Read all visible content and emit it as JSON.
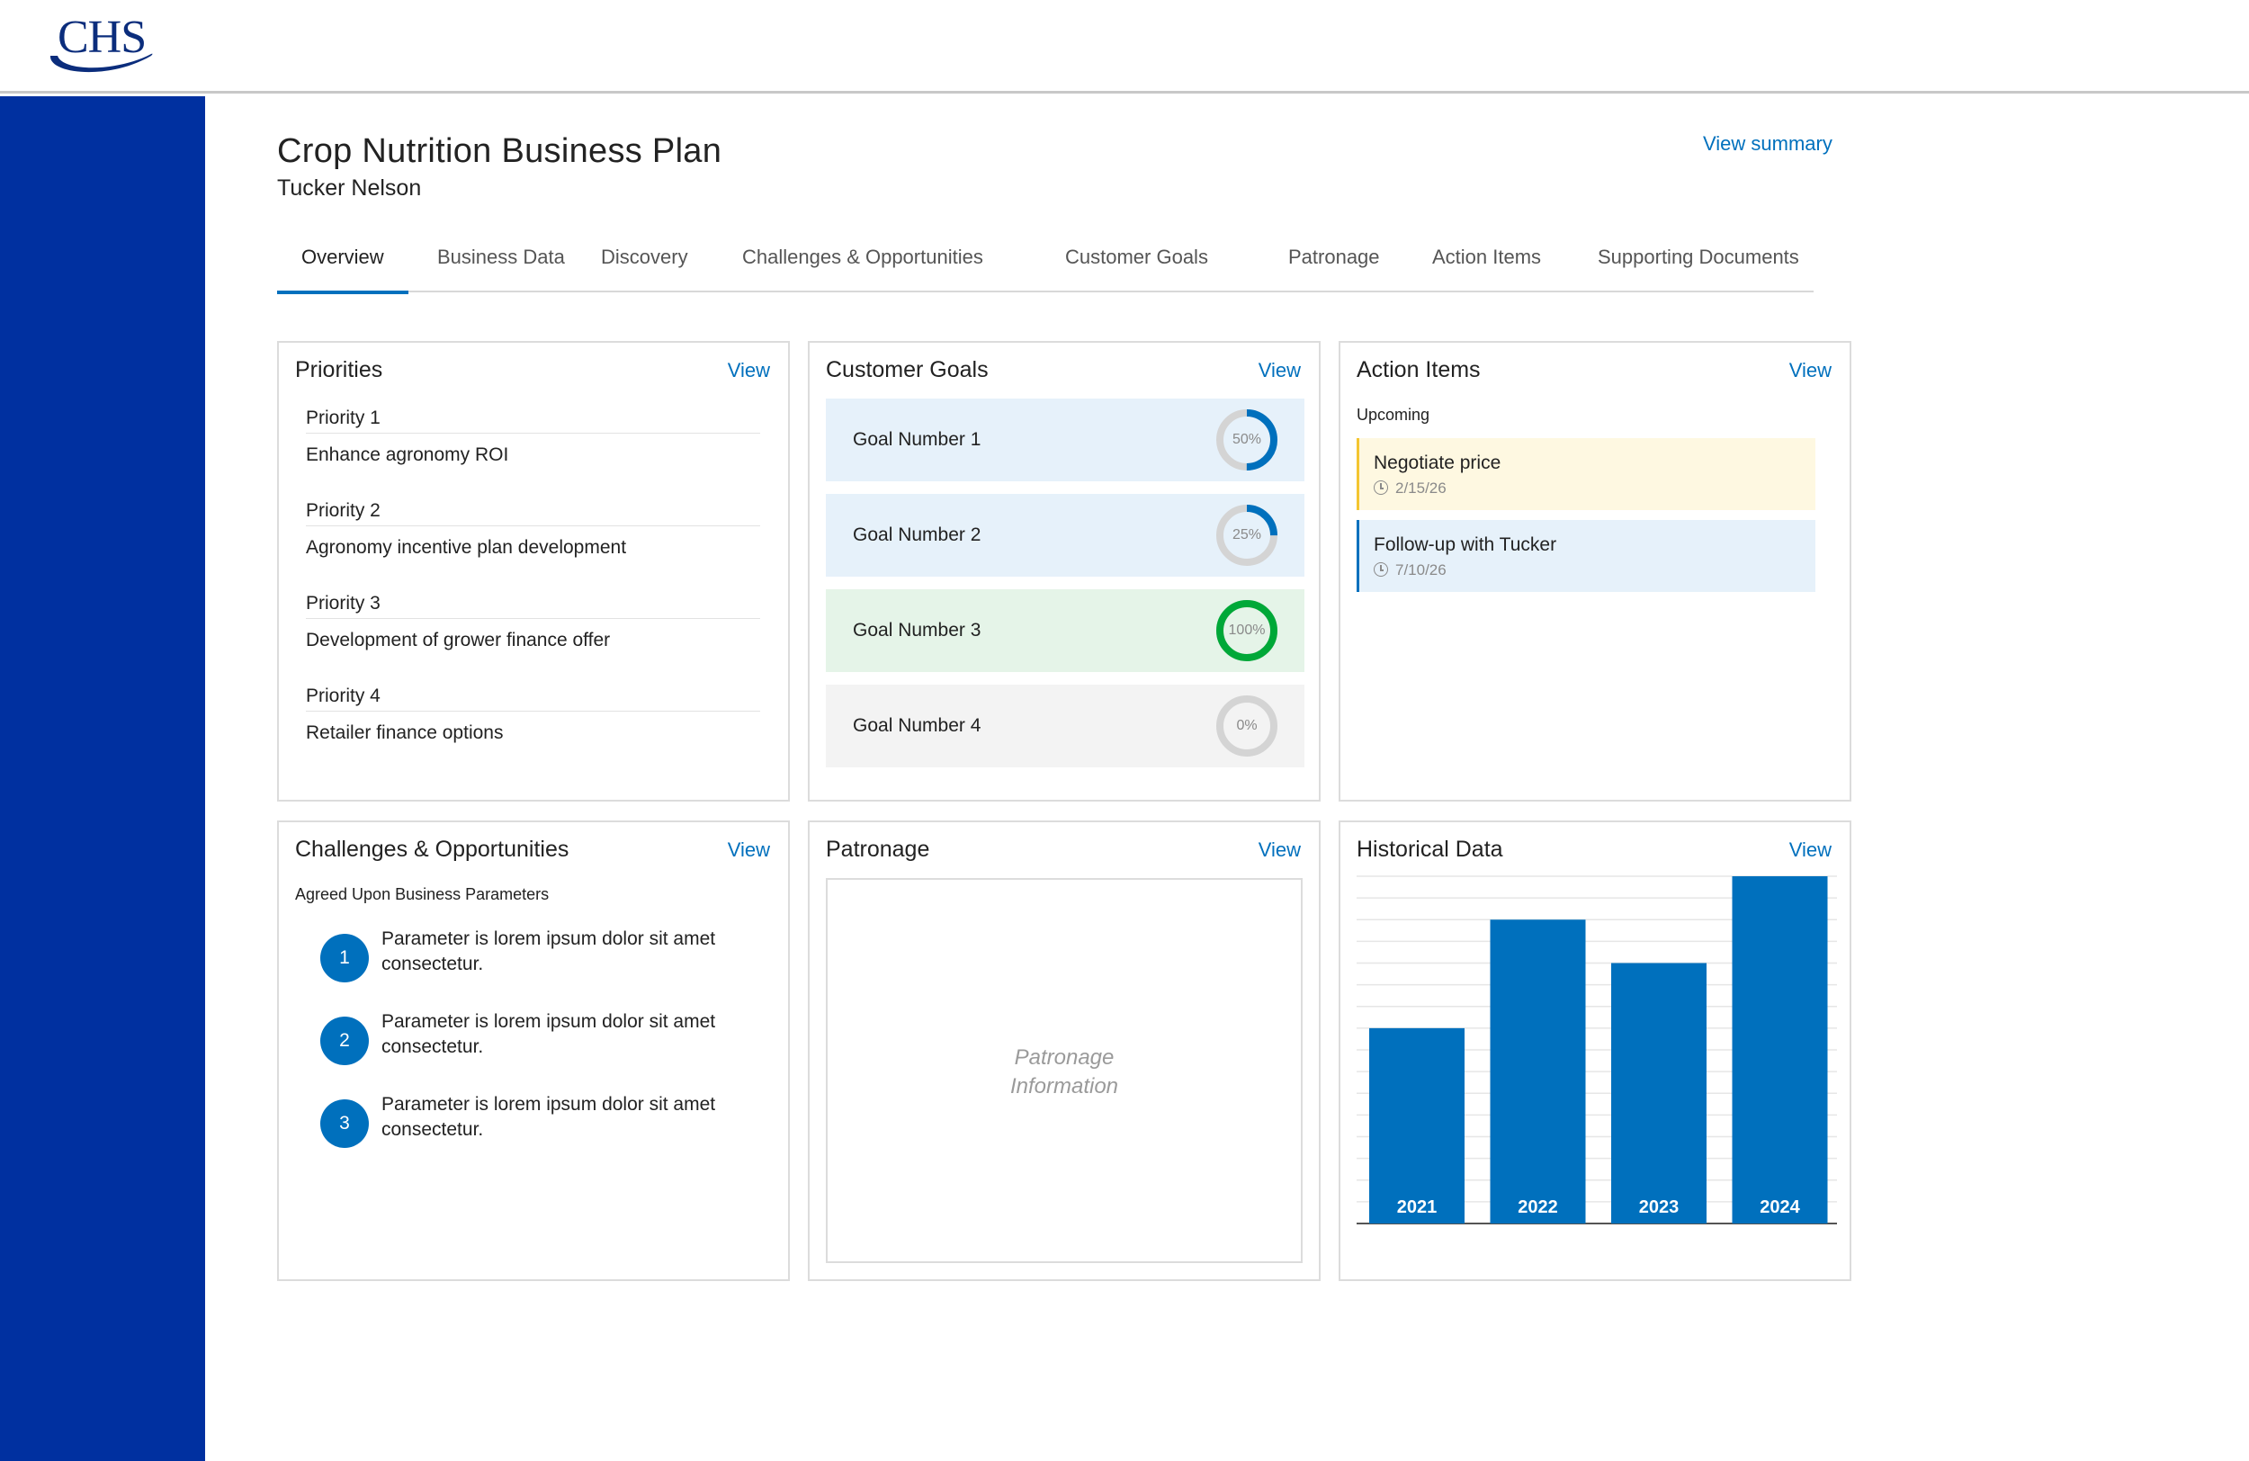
{
  "brand": {
    "logo_text": "CHS",
    "primary_color": "#0030a0",
    "accent_color": "#0070bd"
  },
  "header": {
    "title": "Crop Nutrition Business Plan",
    "subtitle": "Tucker Nelson",
    "view_summary": "View summary"
  },
  "tabs": [
    {
      "label": "Overview",
      "active": true
    },
    {
      "label": "Business Data",
      "active": false
    },
    {
      "label": "Discovery",
      "active": false
    },
    {
      "label": "Challenges & Opportunities",
      "active": false
    },
    {
      "label": "Customer Goals",
      "active": false
    },
    {
      "label": "Patronage",
      "active": false
    },
    {
      "label": "Action Items",
      "active": false
    },
    {
      "label": "Supporting Documents",
      "active": false
    }
  ],
  "priorities": {
    "title": "Priorities",
    "view": "View",
    "items": [
      {
        "label": "Priority 1",
        "value": "Enhance agronomy ROI"
      },
      {
        "label": "Priority 2",
        "value": "Agronomy incentive plan development"
      },
      {
        "label": "Priority 3",
        "value": "Development of grower finance offer"
      },
      {
        "label": "Priority 4",
        "value": "Retailer finance options"
      }
    ]
  },
  "customer_goals": {
    "title": "Customer Goals",
    "view": "View",
    "items": [
      {
        "label": "Goal Number 1",
        "percent_text": "50%",
        "progress": 0.5,
        "bg": "#e6f1fa",
        "color": "#0070bd"
      },
      {
        "label": "Goal Number 2",
        "percent_text": "25%",
        "progress": 0.25,
        "bg": "#e6f1fa",
        "color": "#0070bd"
      },
      {
        "label": "Goal Number 3",
        "percent_text": "100%",
        "progress": 1.0,
        "bg": "#e5f4e8",
        "color": "#00a838"
      },
      {
        "label": "Goal Number 4",
        "percent_text": "0%",
        "progress": 0.0,
        "bg": "#f3f3f3",
        "color": "#0070bd"
      }
    ]
  },
  "action_items": {
    "title": "Action Items",
    "view": "View",
    "subhead": "Upcoming",
    "items": [
      {
        "title": "Negotiate price",
        "date": "2/15/26",
        "bg": "#fef8e1",
        "border": "#f4c530"
      },
      {
        "title": "Follow-up with Tucker",
        "date": "7/10/26",
        "bg": "#e6f1fa",
        "border": "#0070bd"
      }
    ]
  },
  "challenges": {
    "title": "Challenges & Opportunities",
    "view": "View",
    "subhead": "Agreed Upon Business Parameters",
    "items": [
      {
        "num": "1",
        "text": "Parameter is lorem ipsum dolor sit amet consectetur."
      },
      {
        "num": "2",
        "text": "Parameter is lorem ipsum dolor sit amet consectetur."
      },
      {
        "num": "3",
        "text": "Parameter is lorem ipsum dolor sit amet consectetur."
      }
    ]
  },
  "patronage": {
    "title": "Patronage",
    "view": "View",
    "placeholder_line1": "Patronage",
    "placeholder_line2": "Information"
  },
  "historical": {
    "title": "Historical Data",
    "view": "View"
  },
  "chart_data": {
    "type": "bar",
    "categories": [
      "2021",
      "2022",
      "2023",
      "2024"
    ],
    "values": [
      45,
      70,
      60,
      80
    ],
    "ylim": [
      0,
      80
    ],
    "grid": true,
    "bar_color": "#0070bd",
    "title": "",
    "xlabel": "",
    "ylabel": ""
  }
}
